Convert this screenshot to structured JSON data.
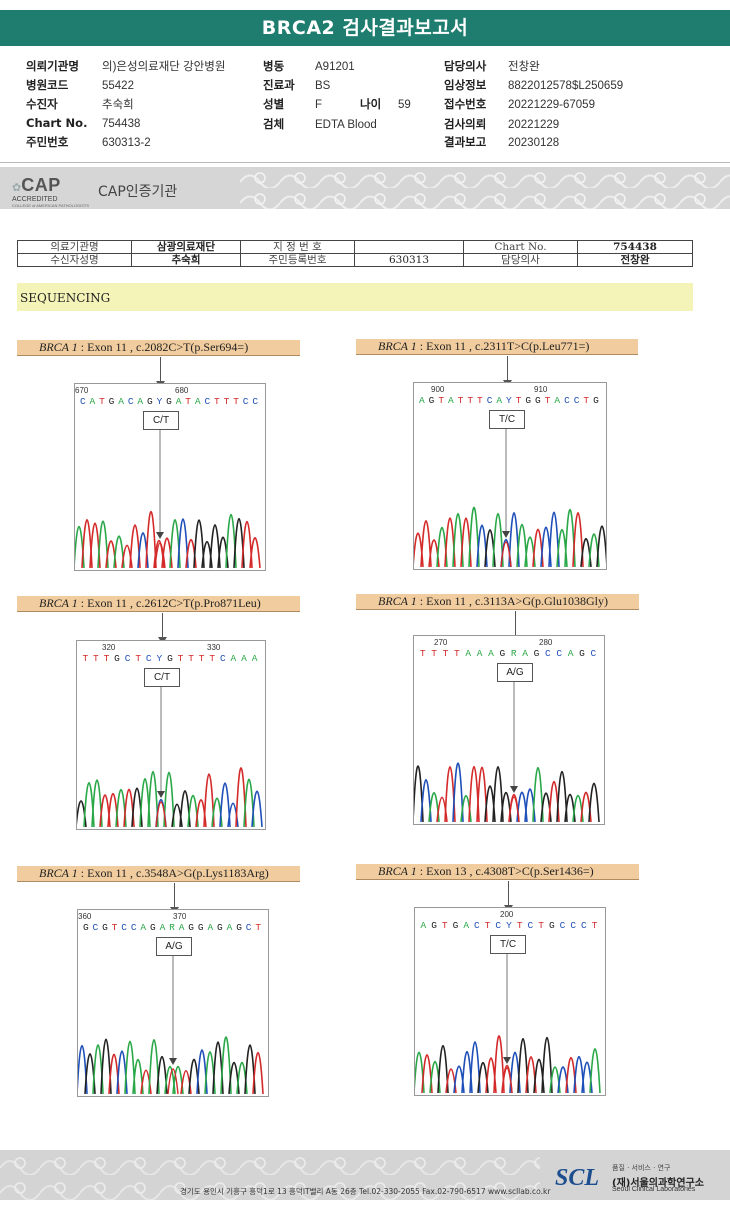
{
  "header": {
    "title": "BRCA2 검사결과보고서"
  },
  "info": {
    "institution_label": "의뢰기관명",
    "institution": "의)은성의료재단 강안병원",
    "hospital_code_label": "병원코드",
    "hospital_code": "55422",
    "patient_label": "수진자",
    "patient": "추숙희",
    "chart_label": "Chart No.",
    "chart": "754438",
    "rrn_label": "주민번호",
    "rrn": "630313-2",
    "ward_label": "병동",
    "ward": "A91201",
    "dept_label": "진료과",
    "dept": "BS",
    "sex_label": "성별",
    "sex": "F",
    "age_label": "나이",
    "age": "59",
    "specimen_label": "검체",
    "specimen": "EDTA Blood",
    "doctor_label": "담당의사",
    "doctor": "전창완",
    "clinical_label": "임상정보",
    "clinical": "8822012578$L250659",
    "receipt_label": "접수번호",
    "receipt": "20221229-67059",
    "request_label": "검사의뢰",
    "request": "20221229",
    "report_label": "결과보고",
    "report": "20230128"
  },
  "cap": {
    "logo_text": "CAP",
    "accredited": "ACCREDITED",
    "college": "COLLEGE of AMERICAN PATHOLOGISTS",
    "cert_text": "CAP인증기관"
  },
  "patient_table": {
    "row1": {
      "l1": "의료기관명",
      "v1": "삼광의료재단",
      "l2": "지 정 번 호",
      "v2": "",
      "l3": "Chart No.",
      "v3": "754438"
    },
    "row2": {
      "l1": "수신자성명",
      "v1": "추숙희",
      "l2": "주민등록번호",
      "v2": "630313",
      "l3": "담당의사",
      "v3": "전창완"
    }
  },
  "section": {
    "title": "SEQUENCING"
  },
  "variants": [
    {
      "gene": "BRCA 1",
      "desc": " : Exon 11 , c.2082C>T(p.Ser694=)",
      "pos1": "670",
      "pos2": "680",
      "sequence": "CATGACAGYGATACTTTCC",
      "call": "C/T"
    },
    {
      "gene": "BRCA 1",
      "desc": " : Exon 11 , c.2311T>C(p.Leu771=)",
      "pos1": "900",
      "pos2": "910",
      "sequence": "AGTATTTCAYTGGTACCTG",
      "call": "T/C"
    },
    {
      "gene": "BRCA 1",
      "desc": " : Exon 11 , c.2612C>T(p.Pro871Leu)",
      "pos1": "320",
      "pos2": "330",
      "sequence": "TTTGCTCYGTTTTCAAA",
      "call": "C/T"
    },
    {
      "gene": "BRCA 1",
      "desc": " : Exon 11 , c.3113A>G(p.Glu1038Gly)",
      "pos1": "270",
      "pos2": "280",
      "sequence": "TTTTAAAGRAGCCAGC",
      "call": "A/G"
    },
    {
      "gene": "BRCA 1",
      "desc": " : Exon 11 , c.3548A>G(p.Lys1183Arg)",
      "pos1": "360",
      "pos2": "370",
      "sequence": "GCGTCCAGARAGGAGAGCT",
      "call": "A/G"
    },
    {
      "gene": "BRCA 1",
      "desc": " : Exon 13 , c.4308T>C(p.Ser1436=)",
      "pos1": "",
      "pos2": "200",
      "sequence": "AGTGACTCYTCTGCCCT",
      "call": "T/C"
    }
  ],
  "footer": {
    "address": "경기도 용인시 기흥구 흥덕1로 13 흥덕IT밸리 A동 26층  Tel.02-330-2055  Fax.02-790-6517  www.scllab.co.kr",
    "logo": "SCL",
    "tagline": "품질 · 서비스 · 연구",
    "org_name": "(재)서울의과학연구소",
    "org_en": "Seoul Clinical Laboratories"
  },
  "colors": {
    "header": "#1e7d6f",
    "label_box": "#f0cc9e",
    "sequencing_bar": "#f4f3b8",
    "A": "#2aa848",
    "C": "#1f4fb8",
    "G": "#222222",
    "T": "#d42a2a"
  }
}
